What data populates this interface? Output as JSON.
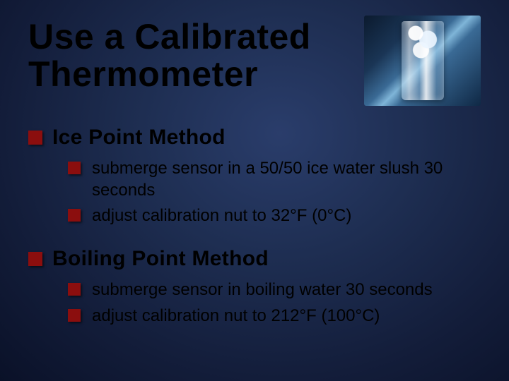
{
  "title_fontsize": 50,
  "title_line1": "Use a Calibrated",
  "title_line2": "Thermometer",
  "section_title_fontsize": 30,
  "sub_text_fontsize": 24,
  "bullet_color": "#8b0e0e",
  "text_color": "#000000",
  "background_colors": [
    "#2a3d6b",
    "#1e2e52",
    "#131d3a",
    "#0a1128"
  ],
  "image": {
    "description": "glass of ice water",
    "width": 165,
    "height": 128
  },
  "sections": [
    {
      "title": "Ice Point Method",
      "items": [
        "submerge sensor in a 50/50 ice water slush 30 seconds",
        "adjust calibration nut to 32°F (0°C)"
      ]
    },
    {
      "title": "Boiling Point Method",
      "items": [
        "submerge sensor in boiling water 30 seconds",
        "adjust calibration nut to 212°F (100°C)"
      ]
    }
  ]
}
